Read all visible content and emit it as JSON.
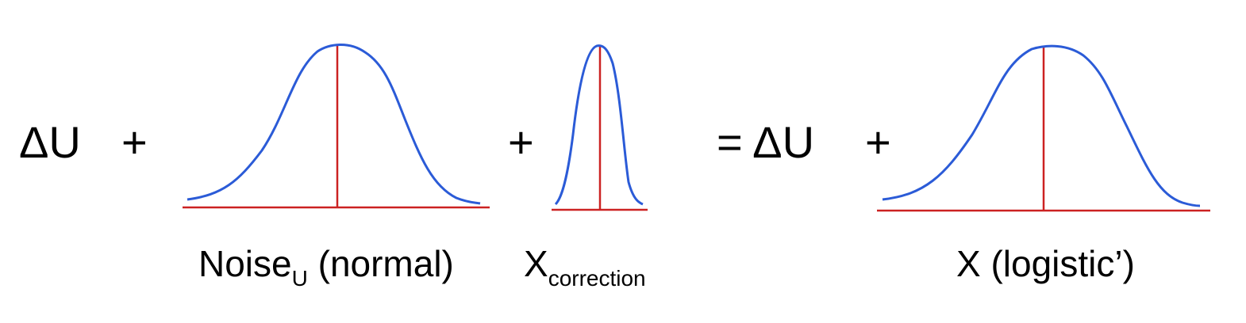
{
  "equation": {
    "delta_u_left": "ΔU",
    "plus_1": "+",
    "plus_2": "+",
    "equals_delta_u": "= ΔU",
    "plus_3": "+"
  },
  "labels": {
    "noise_main": "Noise",
    "noise_sub": "U",
    "noise_suffix": " (normal)",
    "correction_main": "X",
    "correction_sub": "correction",
    "logistic": "X (logistic’)"
  },
  "colors": {
    "curve": "#2b5bd7",
    "axis": "#cc2222",
    "text": "#000000"
  }
}
